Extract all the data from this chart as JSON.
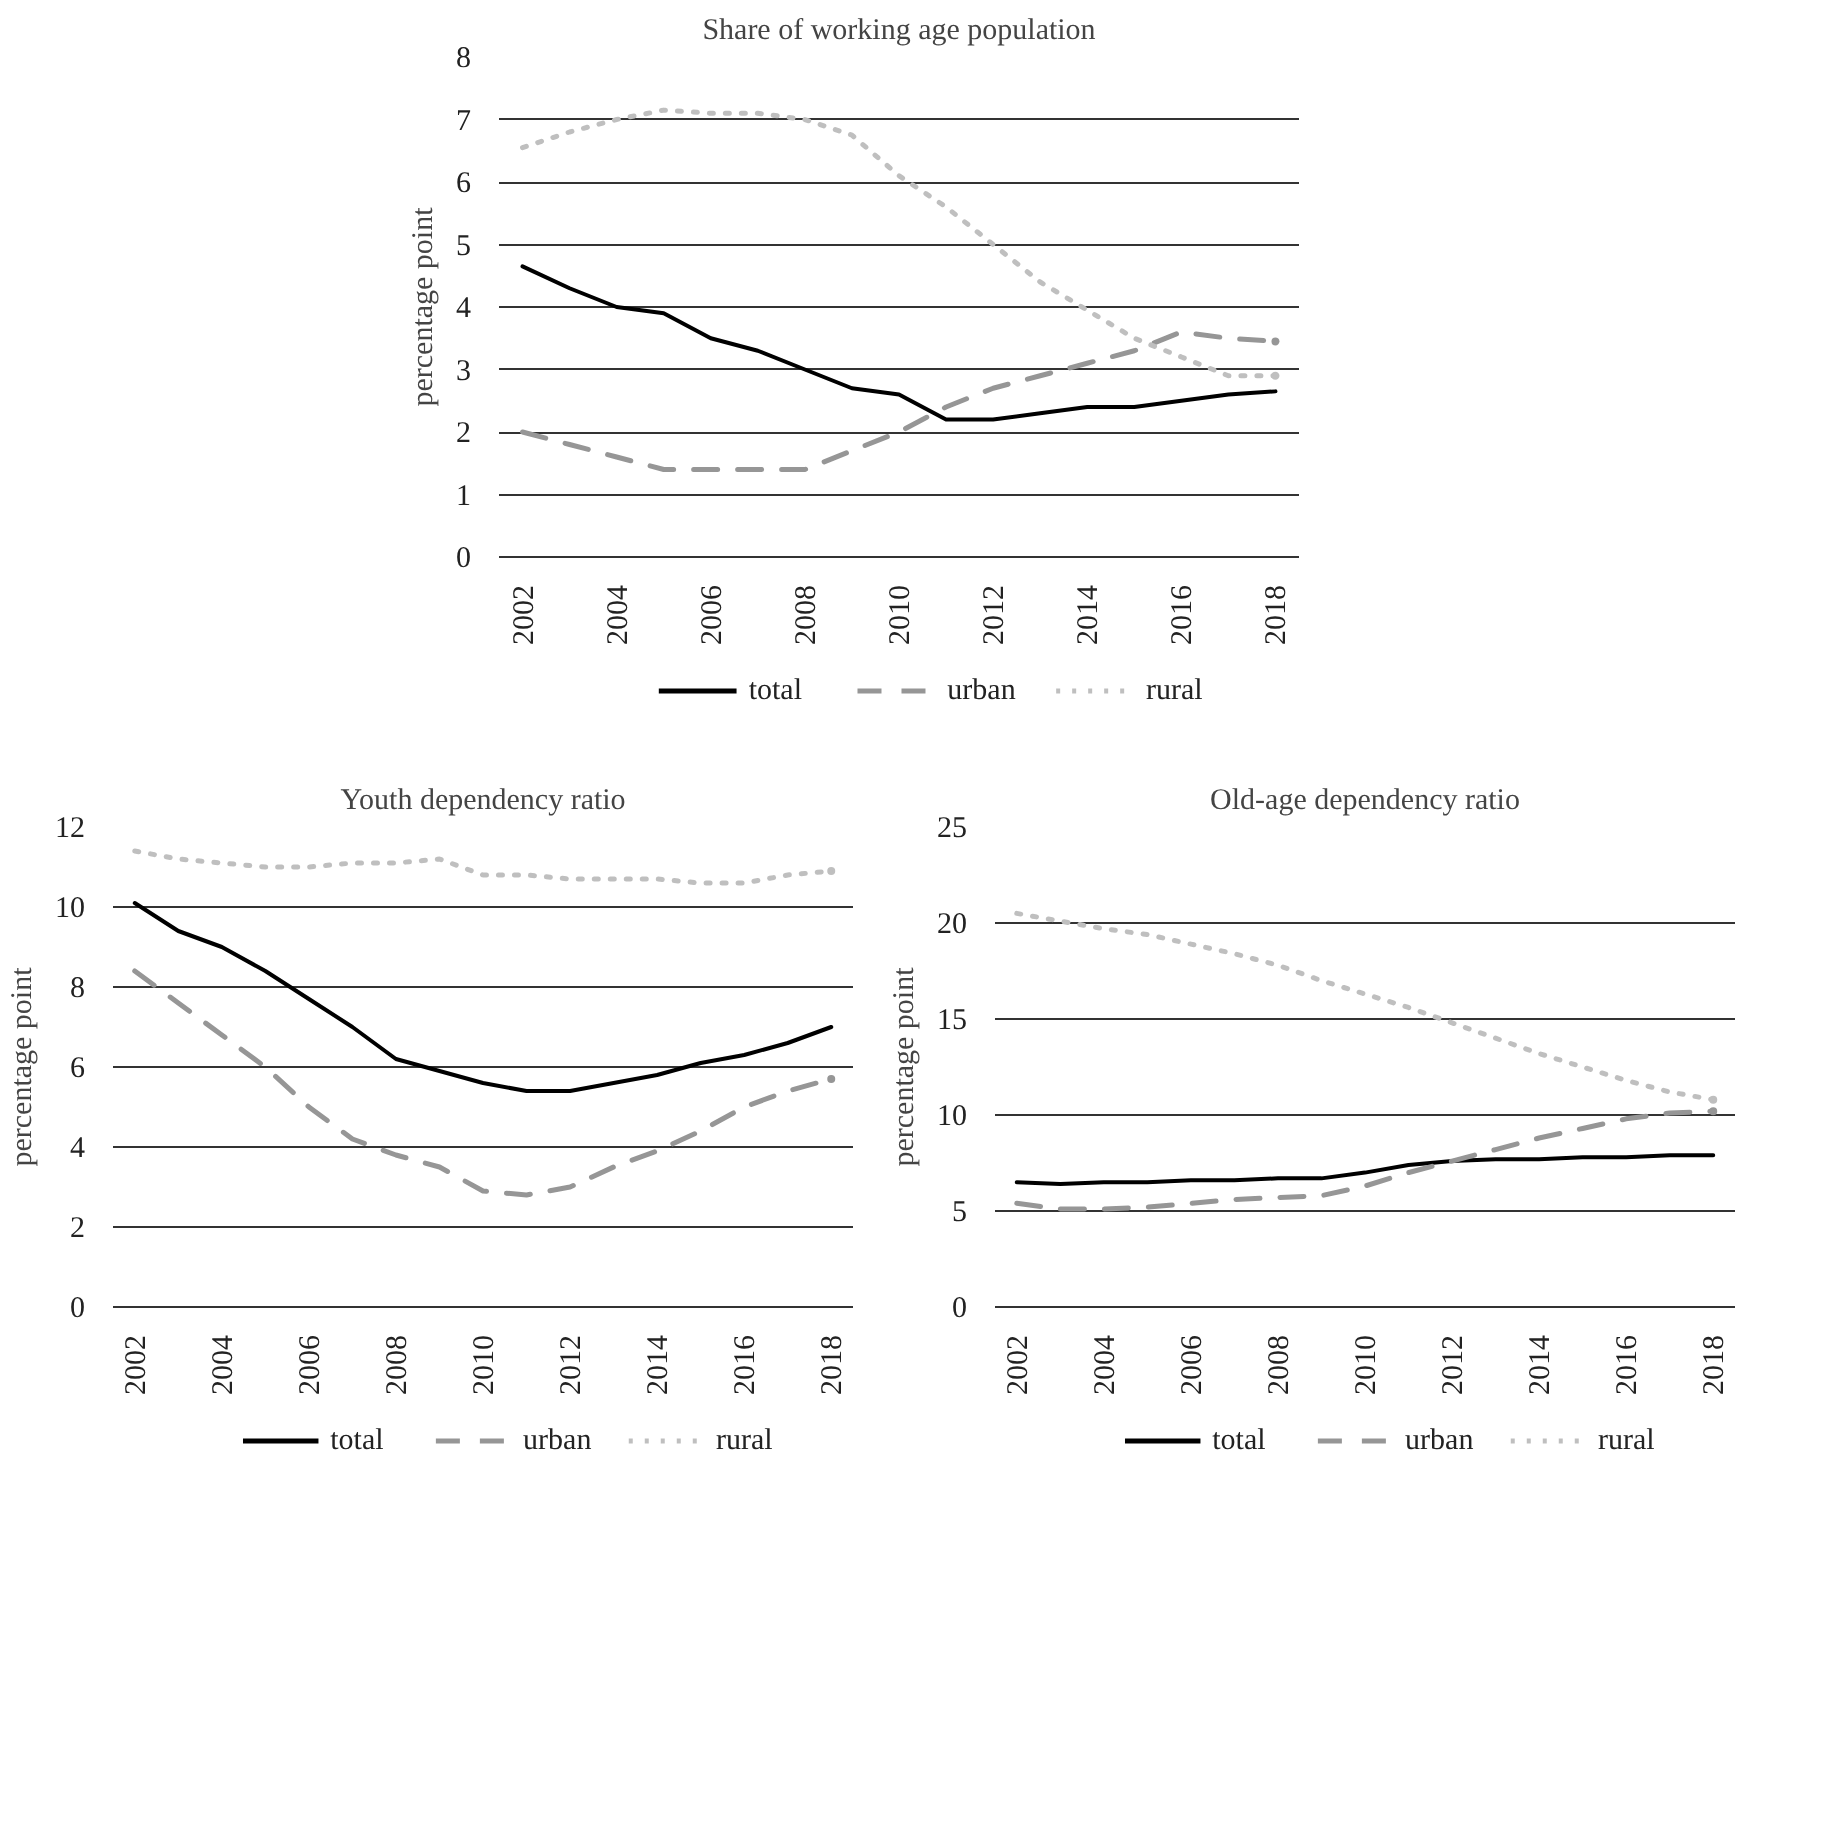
{
  "chart_data": [
    {
      "type": "line",
      "title": "Share of working age population",
      "ylabel": "percentage point",
      "x": [
        2002,
        2003,
        2004,
        2005,
        2006,
        2007,
        2008,
        2009,
        2010,
        2011,
        2012,
        2013,
        2014,
        2015,
        2016,
        2017,
        2018
      ],
      "xlim": [
        2001.5,
        2018.5
      ],
      "xticks": [
        2002,
        2004,
        2006,
        2008,
        2010,
        2012,
        2014,
        2016,
        2018
      ],
      "ylim": [
        0,
        8
      ],
      "yticks": [
        0,
        1,
        2,
        3,
        4,
        5,
        6,
        7,
        8
      ],
      "grid": "y",
      "legend": "bottom",
      "series": [
        {
          "name": "total",
          "color": "#000000",
          "line_style": "solid",
          "values": [
            4.65,
            4.3,
            4.0,
            3.9,
            3.5,
            3.3,
            3.0,
            2.7,
            2.6,
            2.2,
            2.2,
            2.3,
            2.4,
            2.4,
            2.5,
            2.6,
            2.65
          ]
        },
        {
          "name": "urban",
          "color": "#969696",
          "line_style": "dashed",
          "values": [
            2.0,
            1.8,
            1.6,
            1.4,
            1.4,
            1.4,
            1.4,
            1.7,
            2.0,
            2.4,
            2.7,
            2.9,
            3.1,
            3.3,
            3.6,
            3.5,
            3.45
          ]
        },
        {
          "name": "rural",
          "color": "#bfbfbf",
          "line_style": "dotted",
          "values": [
            6.55,
            6.8,
            7.0,
            7.15,
            7.1,
            7.1,
            7.0,
            6.75,
            6.1,
            5.6,
            5.0,
            4.4,
            3.95,
            3.5,
            3.2,
            2.9,
            2.9
          ]
        }
      ]
    },
    {
      "type": "line",
      "title": "Youth dependency ratio",
      "ylabel": "percentage point",
      "x": [
        2002,
        2003,
        2004,
        2005,
        2006,
        2007,
        2008,
        2009,
        2010,
        2011,
        2012,
        2013,
        2014,
        2015,
        2016,
        2017,
        2018
      ],
      "xlim": [
        2001.5,
        2018.5
      ],
      "xticks": [
        2002,
        2004,
        2006,
        2008,
        2010,
        2012,
        2014,
        2016,
        2018
      ],
      "ylim": [
        0,
        12
      ],
      "yticks": [
        0,
        2,
        4,
        6,
        8,
        10,
        12
      ],
      "grid": "y",
      "legend": "bottom",
      "series": [
        {
          "name": "total",
          "color": "#000000",
          "line_style": "solid",
          "values": [
            10.1,
            9.4,
            9.0,
            8.4,
            7.7,
            7.0,
            6.2,
            5.9,
            5.6,
            5.4,
            5.4,
            5.6,
            5.8,
            6.1,
            6.3,
            6.6,
            7.0
          ]
        },
        {
          "name": "urban",
          "color": "#969696",
          "line_style": "dashed",
          "values": [
            8.4,
            7.6,
            6.8,
            6.0,
            5.0,
            4.2,
            3.8,
            3.5,
            2.9,
            2.8,
            3.0,
            3.5,
            3.9,
            4.4,
            5.0,
            5.4,
            5.7
          ]
        },
        {
          "name": "rural",
          "color": "#bfbfbf",
          "line_style": "dotted",
          "values": [
            11.4,
            11.2,
            11.1,
            11.0,
            11.0,
            11.1,
            11.1,
            11.2,
            10.8,
            10.8,
            10.7,
            10.7,
            10.7,
            10.6,
            10.6,
            10.8,
            10.9
          ]
        }
      ]
    },
    {
      "type": "line",
      "title": "Old-age dependency ratio",
      "ylabel": "percentage point",
      "x": [
        2002,
        2003,
        2004,
        2005,
        2006,
        2007,
        2008,
        2009,
        2010,
        2011,
        2012,
        2013,
        2014,
        2015,
        2016,
        2017,
        2018
      ],
      "xlim": [
        2001.5,
        2018.5
      ],
      "xticks": [
        2002,
        2004,
        2006,
        2008,
        2010,
        2012,
        2014,
        2016,
        2018
      ],
      "ylim": [
        0,
        25
      ],
      "yticks": [
        0,
        5,
        10,
        15,
        20,
        25
      ],
      "grid": "y",
      "legend": "bottom",
      "series": [
        {
          "name": "total",
          "color": "#000000",
          "line_style": "solid",
          "values": [
            6.5,
            6.4,
            6.5,
            6.5,
            6.6,
            6.6,
            6.7,
            6.7,
            7.0,
            7.4,
            7.6,
            7.7,
            7.7,
            7.8,
            7.8,
            7.9,
            7.9
          ]
        },
        {
          "name": "urban",
          "color": "#969696",
          "line_style": "dashed",
          "values": [
            5.4,
            5.1,
            5.1,
            5.2,
            5.4,
            5.6,
            5.7,
            5.8,
            6.3,
            7.0,
            7.6,
            8.2,
            8.8,
            9.3,
            9.8,
            10.1,
            10.2
          ]
        },
        {
          "name": "rural",
          "color": "#bfbfbf",
          "line_style": "dotted",
          "values": [
            20.5,
            20.1,
            19.7,
            19.4,
            18.9,
            18.4,
            17.8,
            17.0,
            16.3,
            15.6,
            14.8,
            14.0,
            13.2,
            12.5,
            11.8,
            11.2,
            10.8
          ]
        }
      ]
    }
  ]
}
